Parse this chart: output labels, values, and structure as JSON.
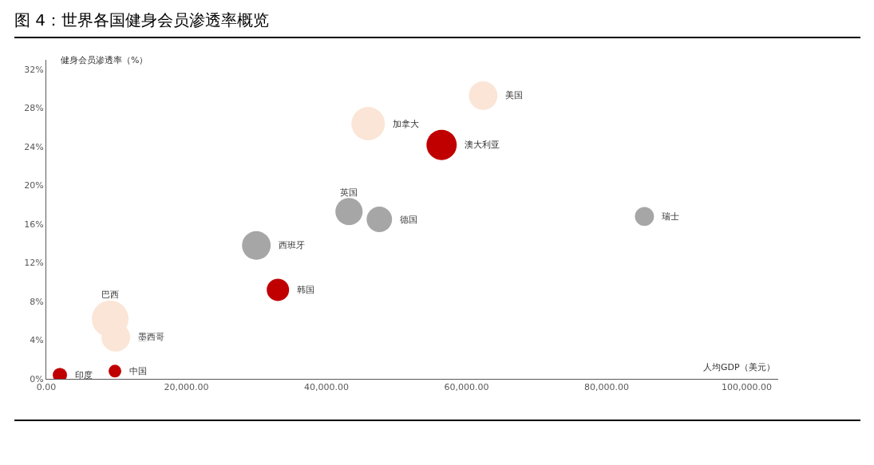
{
  "chart_data": {
    "type": "bubble",
    "title": "图 4：世界各国健身会员渗透率概览",
    "xlabel": "人均GDP（美元）",
    "ylabel": "健身会员渗透率（%）",
    "series": [
      {
        "x": [
          1940,
          9800,
          9120,
          9920,
          33070,
          29990,
          43220,
          47550,
          85400,
          45950,
          56440,
          62370
        ],
        "values": [
          0.4,
          0.8,
          6.2,
          4.3,
          9.2,
          13.8,
          17.3,
          16.5,
          16.8,
          26.4,
          24.2,
          29.3
        ],
        "sizes": [
          0.15,
          0.12,
          1,
          0.61,
          0.37,
          0.61,
          0.55,
          0.48,
          0.27,
          0.83,
          0.68,
          0.61
        ],
        "colors": [
          "#c00000",
          "#c00000",
          "#fbe5d6",
          "#fbe5d6",
          "#c00000",
          "#a6a6a6",
          "#a6a6a6",
          "#a6a6a6",
          "#a6a6a6",
          "#fbe5d6",
          "#c00000",
          "#fbe5d6"
        ]
      }
    ],
    "annotations": [
      {
        "text": "印度",
        "x": 1940,
        "y": 0.4
      },
      {
        "text": "中国",
        "x": 9800,
        "y": 0.8
      },
      {
        "text": "巴西",
        "x": 9120,
        "y": 6.2
      },
      {
        "text": "墨西哥",
        "x": 9920,
        "y": 4.3
      },
      {
        "text": "韩国",
        "x": 33070,
        "y": 9.2
      },
      {
        "text": "西班牙",
        "x": 29990,
        "y": 13.8
      },
      {
        "text": "英国",
        "x": 43220,
        "y": 17.3
      },
      {
        "text": "德国",
        "x": 47550,
        "y": 16.5
      },
      {
        "text": "瑞士",
        "x": 85400,
        "y": 16.8
      },
      {
        "text": "加拿大",
        "x": 45950,
        "y": 26.4
      },
      {
        "text": "澳大利亚",
        "x": 56440,
        "y": 24.2
      },
      {
        "text": "美国",
        "x": 62370,
        "y": 29.3
      }
    ],
    "xlim": [
      0,
      104500
    ],
    "ylim": [
      0,
      33
    ],
    "xticks": [
      {
        "value": 0,
        "label": "0.00"
      },
      {
        "value": 20000,
        "label": "20,000.00"
      },
      {
        "value": 40000,
        "label": "40,000.00"
      },
      {
        "value": 60000,
        "label": "60,000.00"
      },
      {
        "value": 80000,
        "label": "80,000.00"
      },
      {
        "value": 100000,
        "label": "100,000.00"
      }
    ],
    "yticks": [
      {
        "value": 0,
        "label": "0%"
      },
      {
        "value": 4,
        "label": "4%"
      },
      {
        "value": 8,
        "label": "8%"
      },
      {
        "value": 12,
        "label": "12%"
      },
      {
        "value": 16,
        "label": "16%"
      },
      {
        "value": 20,
        "label": "20%"
      },
      {
        "value": 24,
        "label": "24%"
      },
      {
        "value": 28,
        "label": "28%"
      },
      {
        "value": 32,
        "label": "32%"
      }
    ],
    "grid": false,
    "legend": false,
    "marker": "circle"
  }
}
